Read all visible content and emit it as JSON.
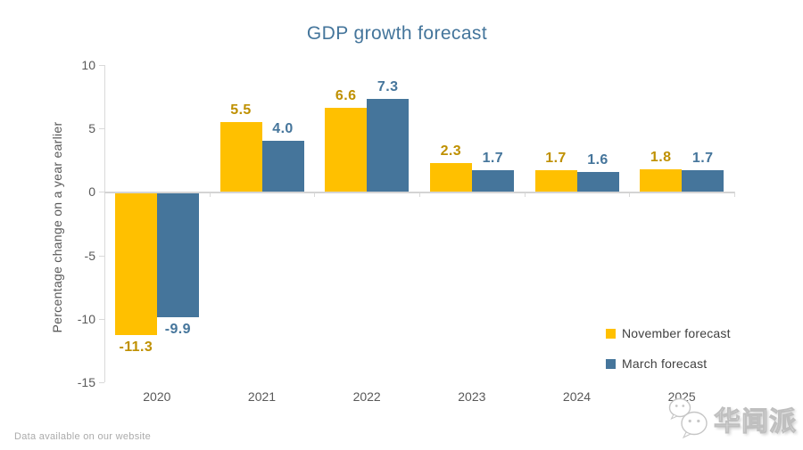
{
  "chart_data": {
    "type": "bar",
    "title": "GDP growth forecast",
    "categories": [
      "2020",
      "2021",
      "2022",
      "2023",
      "2024",
      "2025"
    ],
    "series": [
      {
        "name": "November forecast",
        "color": "#FFC000",
        "label_color": "#BF9000",
        "values": [
          -11.3,
          5.5,
          6.6,
          2.3,
          1.7,
          1.8
        ]
      },
      {
        "name": "March forecast",
        "color": "#45759B",
        "label_color": "#45759B",
        "values": [
          -9.9,
          4.0,
          7.3,
          1.7,
          1.6,
          1.7
        ]
      }
    ],
    "xlabel": "",
    "ylabel": "Percentage change on a year earlier",
    "ylim": [
      -15,
      10
    ],
    "yticks": [
      10,
      5,
      0,
      -5,
      -10,
      -15
    ],
    "grid": false,
    "value_labels_decimals": 1,
    "legend_position": "inside-right-bottom"
  },
  "colors": {
    "title": "#44759B",
    "axis_line": "#D9D9D9",
    "tick_text": "#595959",
    "legend_text": "#404040",
    "footer_text": "#ABABAB"
  },
  "footer": {
    "text": "Data available on our website"
  },
  "watermark": {
    "text": "华闻派",
    "icon": "wechat-chat-bubbles-icon"
  }
}
